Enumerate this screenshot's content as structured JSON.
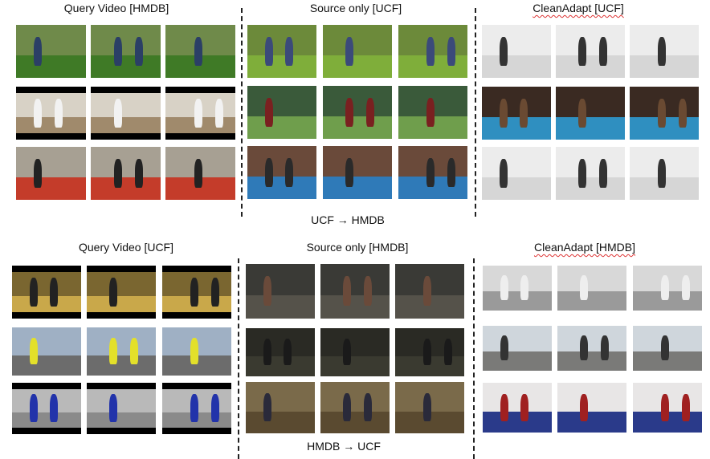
{
  "panels": [
    {
      "title": "Query Video [HMDB]",
      "x": 145,
      "squiggle": false
    },
    {
      "title": "Source only [UCF]",
      "x": 443,
      "squiggle": false
    },
    {
      "title": "CleanAdapt [UCF]",
      "x": 720,
      "squiggle": true
    },
    {
      "title": "Query Video [UCF]",
      "x": 157,
      "squiggle": false
    },
    {
      "title": "Source only [HMDB]",
      "x": 445,
      "squiggle": false
    },
    {
      "title": "CleanAdapt [HMDB]",
      "x": 728,
      "squiggle": true
    }
  ],
  "directions": {
    "top": "UCF → HMDB",
    "bottom": "HMDB → UCF"
  },
  "scenes": {
    "grass": {
      "sky": "#6f8a4a",
      "ground": "#3f7a26",
      "fig": "#2b3f66"
    },
    "dojo": {
      "sky": "#d8d2c6",
      "ground": "#a08a6c",
      "fig": "#f2f2f2",
      "band": true
    },
    "hall": {
      "sky": "#a7a093",
      "ground": "#c43c2a",
      "fig": "#222"
    },
    "lawn": {
      "sky": "#6c8a3a",
      "ground": "#7fae3a",
      "fig": "#3b4a7a"
    },
    "field": {
      "sky": "#3a5a3a",
      "ground": "#6f9e4c",
      "fig": "#7a2020"
    },
    "ring": {
      "sky": "#6a4a3a",
      "ground": "#2f7ab8",
      "fig": "#2a2a2a"
    },
    "fence": {
      "sky": "#ececec",
      "ground": "#d6d6d6",
      "fig": "#333"
    },
    "boxring": {
      "sky": "#3a2a22",
      "ground": "#2f8fc0",
      "fig": "#6a4a32"
    },
    "garage": {
      "sky": "#7a6630",
      "ground": "#c9a84a",
      "fig": "#222",
      "band": true
    },
    "road": {
      "sky": "#9fb0c4",
      "ground": "#6c6c6c",
      "fig": "#e3e02a"
    },
    "gym": {
      "sky": "#b9b9b9",
      "ground": "#8a8a8a",
      "fig": "#2233aa",
      "band": true
    },
    "door": {
      "sky": "#3a3a36",
      "ground": "#55524a",
      "fig": "#6a4a3a"
    },
    "dark": {
      "sky": "#2a2a24",
      "ground": "#3a3a30",
      "fig": "#1a1a1a"
    },
    "corridor": {
      "sky": "#7a6a4a",
      "ground": "#5a4a30",
      "fig": "#2a2a3a"
    },
    "bag": {
      "sky": "#d8d8d8",
      "ground": "#9a9a9a",
      "fig": "#eeeeee"
    },
    "bike": {
      "sky": "#cfd6dc",
      "ground": "#7a7a78",
      "fig": "#333"
    },
    "bars": {
      "sky": "#e8e6e6",
      "ground": "#2a3a8a",
      "fig": "#a02020"
    }
  }
}
